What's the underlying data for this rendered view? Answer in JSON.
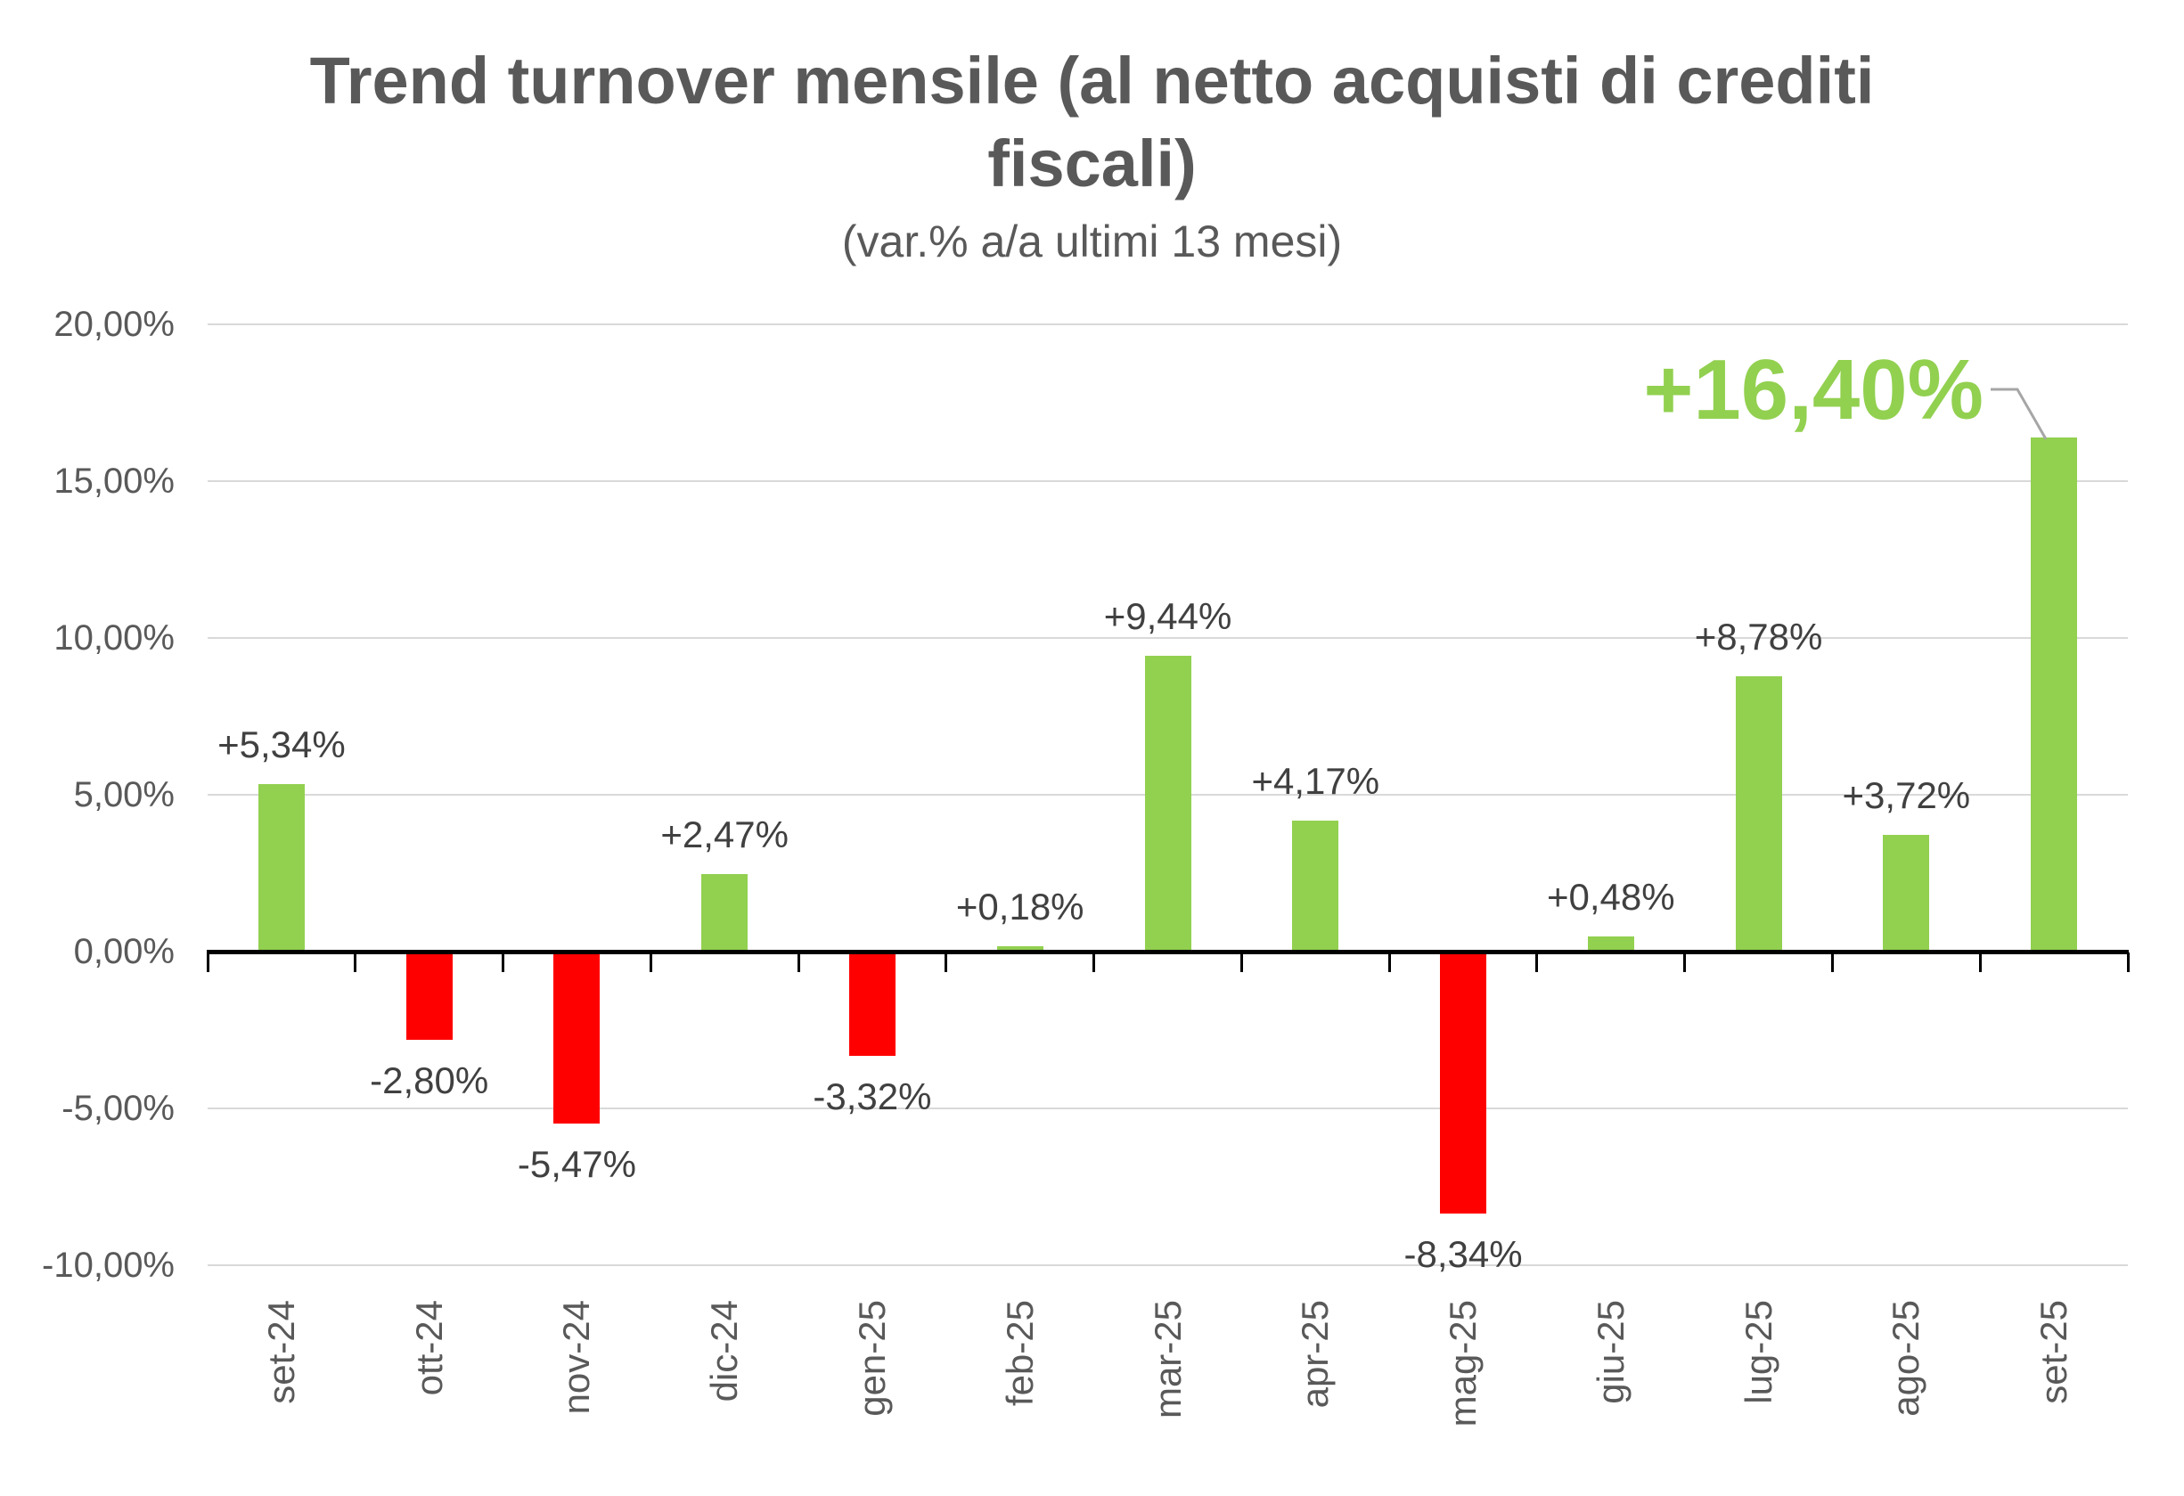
{
  "header": {
    "title": "Trend turnover mensile (al netto acquisti di crediti fiscali)",
    "subtitle": "(var.% a/a ultimi 13 mesi)"
  },
  "chart_data": {
    "type": "bar",
    "title": "Trend turnover mensile (al netto acquisti di crediti fiscali)",
    "subtitle": "(var.% a/a ultimi 13 mesi)",
    "categories": [
      "set-24",
      "ott-24",
      "nov-24",
      "dic-24",
      "gen-25",
      "feb-25",
      "mar-25",
      "apr-25",
      "mag-25",
      "giu-25",
      "lug-25",
      "ago-25",
      "set-25"
    ],
    "values": [
      5.34,
      -2.8,
      -5.47,
      2.47,
      -3.32,
      0.18,
      9.44,
      4.17,
      -8.34,
      0.48,
      8.78,
      3.72,
      16.4
    ],
    "data_labels": [
      "+5,34%",
      "-2,80%",
      "-5,47%",
      "+2,47%",
      "-3,32%",
      "+0,18%",
      "+9,44%",
      "+4,17%",
      "-8,34%",
      "+0,48%",
      "+8,78%",
      "+3,72%",
      "+16,40%"
    ],
    "highlight": {
      "index": 12,
      "label": "+16,40%"
    },
    "y_axis": {
      "ticks": [
        {
          "label": "20,00%",
          "value": 20
        },
        {
          "label": "15,00%",
          "value": 15
        },
        {
          "label": "10,00%",
          "value": 10
        },
        {
          "label": "5,00%",
          "value": 5
        },
        {
          "label": "0,00%",
          "value": 0
        },
        {
          "label": "-5,00%",
          "value": -5
        },
        {
          "label": "-10,00%",
          "value": -10
        }
      ],
      "min": -10,
      "max": 20
    },
    "xlabel": "",
    "ylabel": "",
    "grid": true,
    "legend": false,
    "colors": {
      "positive": "#92D050",
      "negative": "#FF0000",
      "highlight_text": "#92D050",
      "grid": "#D9D9D9",
      "axis": "#000000",
      "axis_text": "#595959",
      "data_label_text": "#404040",
      "title_text": "#595959",
      "callout": "#A6A6A6"
    }
  }
}
